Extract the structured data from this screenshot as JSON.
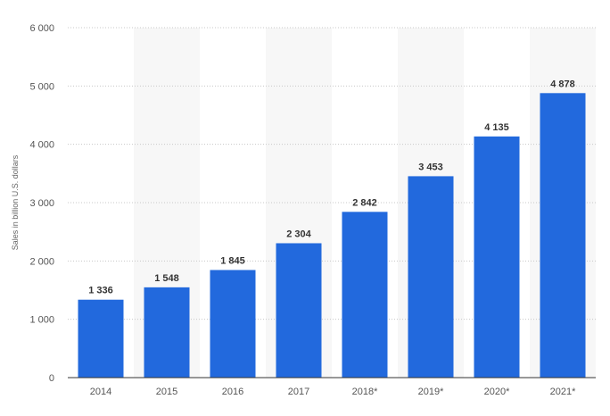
{
  "chart_data": {
    "type": "bar",
    "title": "",
    "xlabel": "",
    "ylabel": "Sales in billion U.S. dollars",
    "categories": [
      "2014",
      "2015",
      "2016",
      "2017",
      "2018*",
      "2019*",
      "2020*",
      "2021*"
    ],
    "values": [
      1336,
      1548,
      1845,
      2304,
      2842,
      3453,
      4135,
      4878
    ],
    "value_labels": [
      "1 336",
      "1 548",
      "1 845",
      "2 304",
      "2 842",
      "3 453",
      "4 135",
      "4 878"
    ],
    "ylim": [
      0,
      6000
    ],
    "yticks": [
      0,
      1000,
      2000,
      3000,
      4000,
      5000,
      6000
    ],
    "ytick_labels": [
      "0",
      "1 000",
      "2 000",
      "3 000",
      "4 000",
      "5 000",
      "6 000"
    ],
    "grid": true,
    "legend": "none",
    "colors": {
      "bar": "#2269dd",
      "band": "#f7f7f7",
      "grid": "#c8c8c8",
      "axis": "#333333"
    }
  }
}
